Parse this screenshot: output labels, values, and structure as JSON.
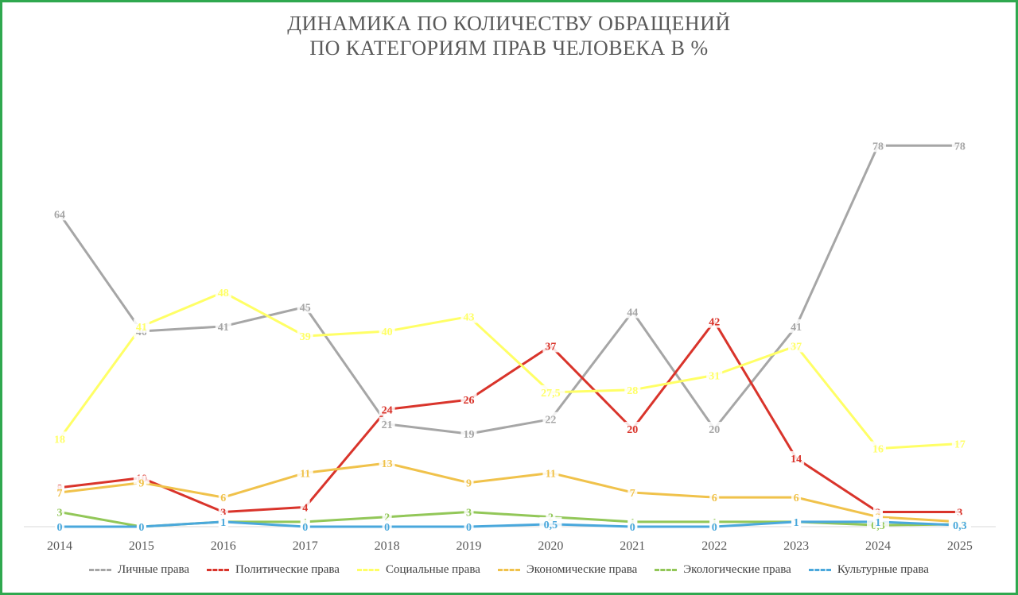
{
  "chart_data": {
    "type": "line",
    "title_lines": [
      "ДИНАМИКА ПО КОЛИЧЕСТВУ ОБРАЩЕНИЙ",
      "ПО КАТЕГОРИЯМ ПРАВ ЧЕЛОВЕКА В %"
    ],
    "x": [
      "2014",
      "2015",
      "2016",
      "2017",
      "2018",
      "2019",
      "2020",
      "2021",
      "2022",
      "2023",
      "2024",
      "2025"
    ],
    "ylim": [
      0,
      85
    ],
    "grid": false,
    "legend_position": "bottom",
    "series": [
      {
        "name": "Личные права",
        "color": "#a6a6a6",
        "values": [
          64,
          40,
          41,
          45,
          21,
          19,
          22,
          44,
          20,
          41,
          78,
          78
        ],
        "labels": [
          "64",
          "40",
          "41",
          "45",
          "21",
          "19",
          "22",
          "44",
          "20",
          "41",
          "78",
          "78"
        ]
      },
      {
        "name": "Политические права",
        "color": "#d9342b",
        "values": [
          8,
          10,
          3,
          4,
          24,
          26,
          37,
          20,
          42,
          14,
          3,
          3
        ],
        "labels": [
          "8",
          "10",
          "3",
          "4",
          "24",
          "26",
          "37",
          "20",
          "42",
          "14",
          "3",
          "3"
        ]
      },
      {
        "name": "Социальные права",
        "color": "#ffff66",
        "values": [
          18,
          41,
          48,
          39,
          40,
          43,
          27.5,
          28,
          31,
          37,
          16,
          17
        ],
        "labels": [
          "18",
          "41",
          "48",
          "39",
          "40",
          "43",
          "27,5",
          "28",
          "31",
          "37",
          "16",
          "17"
        ]
      },
      {
        "name": "Экономические права",
        "color": "#f0c24b",
        "values": [
          7,
          9,
          6,
          11,
          13,
          9,
          11,
          7,
          6,
          6,
          2,
          1
        ],
        "labels": [
          "7",
          "9",
          "6",
          "11",
          "13",
          "9",
          "11",
          "7",
          "6",
          "6",
          "2",
          "1"
        ]
      },
      {
        "name": "Экологические права",
        "color": "#92c758",
        "values": [
          3,
          0,
          1,
          1,
          2,
          3,
          2,
          1,
          1,
          1,
          0.3,
          0.5
        ],
        "labels": [
          "3",
          "0",
          "1",
          "1",
          "2",
          "3",
          "2",
          "1",
          "1",
          "1",
          "0,3",
          "0,5"
        ]
      },
      {
        "name": "Культурные права",
        "color": "#4aa8dc",
        "values": [
          0,
          0,
          1,
          0,
          0,
          0,
          0.5,
          0,
          0,
          1,
          1,
          0.3
        ],
        "labels": [
          "0",
          "0",
          "1",
          "0",
          "0",
          "0",
          "0,5",
          "0",
          "0",
          "1",
          "1",
          "0,3"
        ]
      }
    ]
  }
}
